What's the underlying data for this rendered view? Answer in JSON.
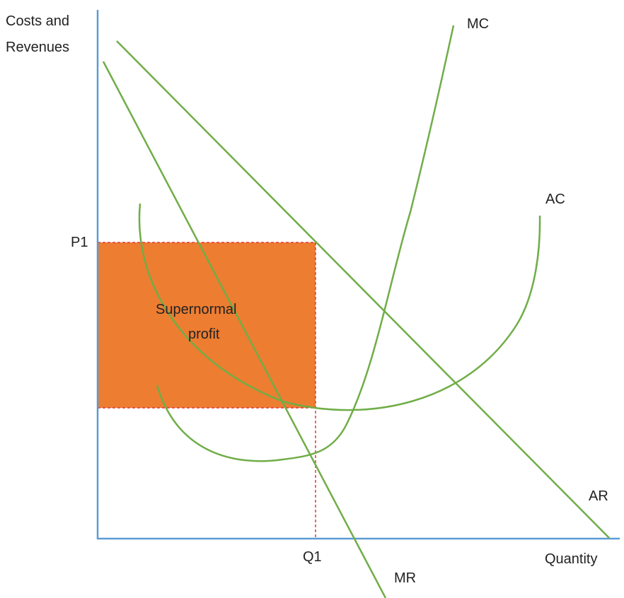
{
  "axes": {
    "y_label_line1": "Costs and",
    "y_label_line2": "Revenues",
    "x_label": "Quantity"
  },
  "ticks": {
    "price": "P1",
    "quantity": "Q1"
  },
  "curves": {
    "mc": "MC",
    "ac": "AC",
    "ar": "AR",
    "mr": "MR"
  },
  "region": {
    "line1": "Supernormal",
    "line2": "profit"
  },
  "colors": {
    "axis": "#5b9bd5",
    "curve": "#70ad47",
    "profit_fill": "#ed7d31",
    "guide": "#e23a3a"
  }
}
